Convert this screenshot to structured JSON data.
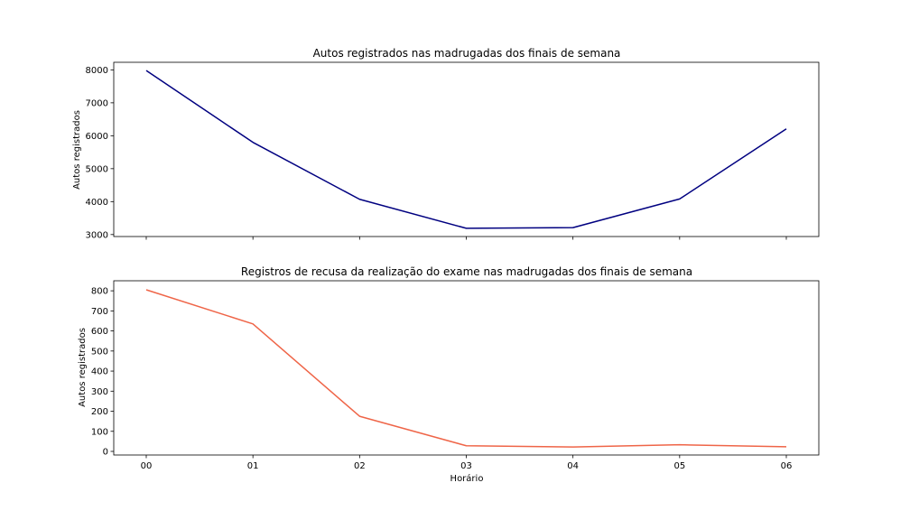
{
  "chart_data": [
    {
      "type": "line",
      "title": "Autos registrados nas madrugadas dos finais de semana",
      "xlabel": "",
      "ylabel": "Autos registrados",
      "categories": [
        "00",
        "01",
        "02",
        "03",
        "04",
        "05",
        "06"
      ],
      "show_x_tick_labels": false,
      "series": [
        {
          "values": [
            7980,
            5800,
            4070,
            3190,
            3210,
            4080,
            6210
          ],
          "color": "#000080"
        }
      ],
      "ylim": [
        2940,
        8230
      ],
      "yticks": [
        3000,
        4000,
        5000,
        6000,
        7000,
        8000
      ],
      "grid": false
    },
    {
      "type": "line",
      "title": "Registros de recusa da realização do exame nas madrugadas dos finais de semana",
      "xlabel": "Horário",
      "ylabel": "Autos registrados",
      "categories": [
        "00",
        "01",
        "02",
        "03",
        "04",
        "05",
        "06"
      ],
      "show_x_tick_labels": true,
      "series": [
        {
          "values": [
            805,
            635,
            175,
            28,
            22,
            33,
            23
          ],
          "color": "#ef6548"
        }
      ],
      "ylim": [
        -18,
        850
      ],
      "yticks": [
        0,
        100,
        200,
        300,
        400,
        500,
        600,
        700,
        800
      ],
      "grid": false
    }
  ]
}
